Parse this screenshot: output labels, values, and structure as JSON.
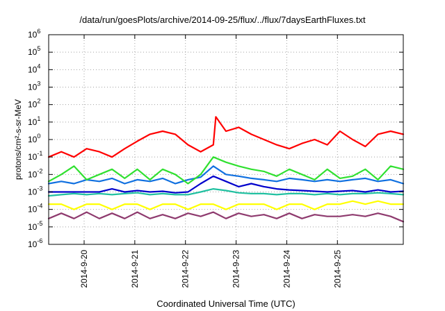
{
  "chart_data": {
    "type": "line",
    "title": "/data/run/goesPlots/archive/2014-09-25/flux/../flux/7daysEarthFluxes.txt",
    "xlabel": "Coordinated Universal Time (UTC)",
    "ylabel": "protons/cm²-s-sr-MeV",
    "yscale": "log",
    "ylim": [
      1e-06,
      1000000.0
    ],
    "y_tick_base": "10",
    "y_tick_exponents": [
      "-6",
      "-5",
      "-4",
      "-3",
      "-2",
      "-1",
      "0",
      "1",
      "2",
      "3",
      "4",
      "5",
      "6"
    ],
    "x_day_range": [
      0,
      7
    ],
    "x_ticks": [
      {
        "day": 0.7,
        "label": "2014-9-20"
      },
      {
        "day": 1.7,
        "label": "2014-9-21"
      },
      {
        "day": 2.7,
        "label": "2014-9-22"
      },
      {
        "day": 3.7,
        "label": "2014-9-23"
      },
      {
        "day": 4.7,
        "label": "2014-9-24"
      },
      {
        "day": 5.7,
        "label": "2014-9-25"
      }
    ],
    "grid": true,
    "series": [
      {
        "color": "#8e3a6e",
        "day": [
          0,
          0.25,
          0.5,
          0.75,
          1,
          1.25,
          1.5,
          1.75,
          2,
          2.25,
          2.5,
          2.75,
          3,
          3.25,
          3.5,
          3.75,
          4,
          4.25,
          4.5,
          4.75,
          5,
          5.25,
          5.5,
          5.75,
          6,
          6.25,
          6.5,
          6.75,
          7
        ],
        "values": [
          3e-05,
          6e-05,
          3e-05,
          7e-05,
          3e-05,
          6e-05,
          3e-05,
          7e-05,
          3e-05,
          5e-05,
          3e-05,
          6e-05,
          4e-05,
          7e-05,
          3e-05,
          6e-05,
          4e-05,
          5e-05,
          3e-05,
          6e-05,
          3e-05,
          5e-05,
          4e-05,
          4e-05,
          5e-05,
          4e-05,
          6e-05,
          4e-05,
          2e-05
        ]
      },
      {
        "color": "#ffff00",
        "day": [
          0,
          0.25,
          0.5,
          0.75,
          1,
          1.25,
          1.5,
          1.75,
          2,
          2.25,
          2.5,
          2.75,
          3,
          3.25,
          3.5,
          3.75,
          4,
          4.25,
          4.5,
          4.75,
          5,
          5.25,
          5.5,
          5.75,
          6,
          6.25,
          6.5,
          6.75,
          7
        ],
        "values": [
          0.0002,
          0.0002,
          0.0001,
          0.0002,
          0.0002,
          0.0001,
          0.0002,
          0.0002,
          0.0001,
          0.0002,
          0.0002,
          0.0001,
          0.0002,
          0.0002,
          0.0001,
          0.0002,
          0.0002,
          0.0002,
          0.0001,
          0.0002,
          0.0002,
          0.0001,
          0.0002,
          0.0002,
          0.0003,
          0.0002,
          0.0003,
          0.0002,
          0.0002
        ]
      },
      {
        "color": "#20c0a0",
        "day": [
          0,
          0.25,
          0.5,
          0.75,
          1,
          1.25,
          1.5,
          1.75,
          2,
          2.25,
          2.5,
          2.75,
          3,
          3.25,
          3.5,
          3.75,
          4,
          4.25,
          4.5,
          4.75,
          5,
          5.25,
          5.5,
          5.75,
          6,
          6.25,
          6.5,
          6.75,
          7
        ],
        "values": [
          0.0006,
          0.0007,
          0.0008,
          0.0007,
          0.0008,
          0.0007,
          0.0008,
          0.0009,
          0.0007,
          0.0008,
          0.0007,
          0.0007,
          0.001,
          0.0015,
          0.0012,
          0.0009,
          0.0008,
          0.0008,
          0.0007,
          0.0008,
          0.0008,
          0.0007,
          0.0008,
          0.0007,
          0.0008,
          0.0008,
          0.0009,
          0.0008,
          0.0007
        ]
      },
      {
        "color": "#0000cc",
        "day": [
          0,
          0.25,
          0.5,
          0.75,
          1,
          1.25,
          1.5,
          1.75,
          2,
          2.25,
          2.5,
          2.75,
          3,
          3.25,
          3.5,
          3.75,
          4,
          4.25,
          4.5,
          4.75,
          5,
          5.25,
          5.5,
          5.75,
          6,
          6.25,
          6.5,
          6.75,
          7
        ],
        "values": [
          0.001,
          0.001,
          0.001,
          0.001,
          0.001,
          0.0015,
          0.001,
          0.0012,
          0.001,
          0.0011,
          0.0009,
          0.001,
          0.003,
          0.008,
          0.004,
          0.002,
          0.003,
          0.002,
          0.0015,
          0.0013,
          0.0012,
          0.0011,
          0.001,
          0.0011,
          0.0012,
          0.001,
          0.0013,
          0.001,
          0.0011
        ]
      },
      {
        "color": "#1070e0",
        "day": [
          0,
          0.25,
          0.5,
          0.75,
          1,
          1.25,
          1.5,
          1.75,
          2,
          2.25,
          2.5,
          2.75,
          3,
          3.25,
          3.5,
          3.75,
          4,
          4.25,
          4.5,
          4.75,
          5,
          5.25,
          5.5,
          5.75,
          6,
          6.25,
          6.5,
          6.75,
          7
        ],
        "values": [
          0.003,
          0.004,
          0.003,
          0.005,
          0.004,
          0.006,
          0.003,
          0.005,
          0.004,
          0.006,
          0.003,
          0.005,
          0.007,
          0.03,
          0.01,
          0.008,
          0.006,
          0.005,
          0.004,
          0.006,
          0.005,
          0.004,
          0.005,
          0.004,
          0.005,
          0.006,
          0.004,
          0.005,
          0.003
        ]
      },
      {
        "color": "#30e030",
        "day": [
          0,
          0.25,
          0.5,
          0.75,
          1,
          1.25,
          1.5,
          1.75,
          2,
          2.25,
          2.5,
          2.75,
          3,
          3.25,
          3.5,
          3.75,
          4,
          4.25,
          4.5,
          4.75,
          5,
          5.25,
          5.5,
          5.75,
          6,
          6.25,
          6.5,
          6.75,
          7
        ],
        "values": [
          0.004,
          0.01,
          0.03,
          0.005,
          0.01,
          0.02,
          0.006,
          0.02,
          0.005,
          0.02,
          0.01,
          0.003,
          0.01,
          0.1,
          0.05,
          0.03,
          0.02,
          0.015,
          0.008,
          0.02,
          0.01,
          0.005,
          0.02,
          0.006,
          0.008,
          0.02,
          0.005,
          0.03,
          0.02
        ]
      },
      {
        "color": "#ff0000",
        "day": [
          0,
          0.25,
          0.5,
          0.75,
          1,
          1.25,
          1.5,
          1.75,
          2,
          2.25,
          2.5,
          2.75,
          3,
          3.25,
          3.3,
          3.5,
          3.75,
          4,
          4.25,
          4.5,
          4.75,
          5,
          5.25,
          5.5,
          5.75,
          6,
          6.25,
          6.5,
          6.75,
          7
        ],
        "values": [
          0.1,
          0.2,
          0.1,
          0.3,
          0.2,
          0.1,
          0.3,
          0.8,
          2,
          3,
          2,
          0.5,
          0.2,
          0.5,
          20,
          3,
          5,
          2,
          1,
          0.5,
          0.3,
          0.6,
          1,
          0.5,
          3,
          1,
          0.4,
          2,
          3,
          2
        ]
      }
    ]
  }
}
